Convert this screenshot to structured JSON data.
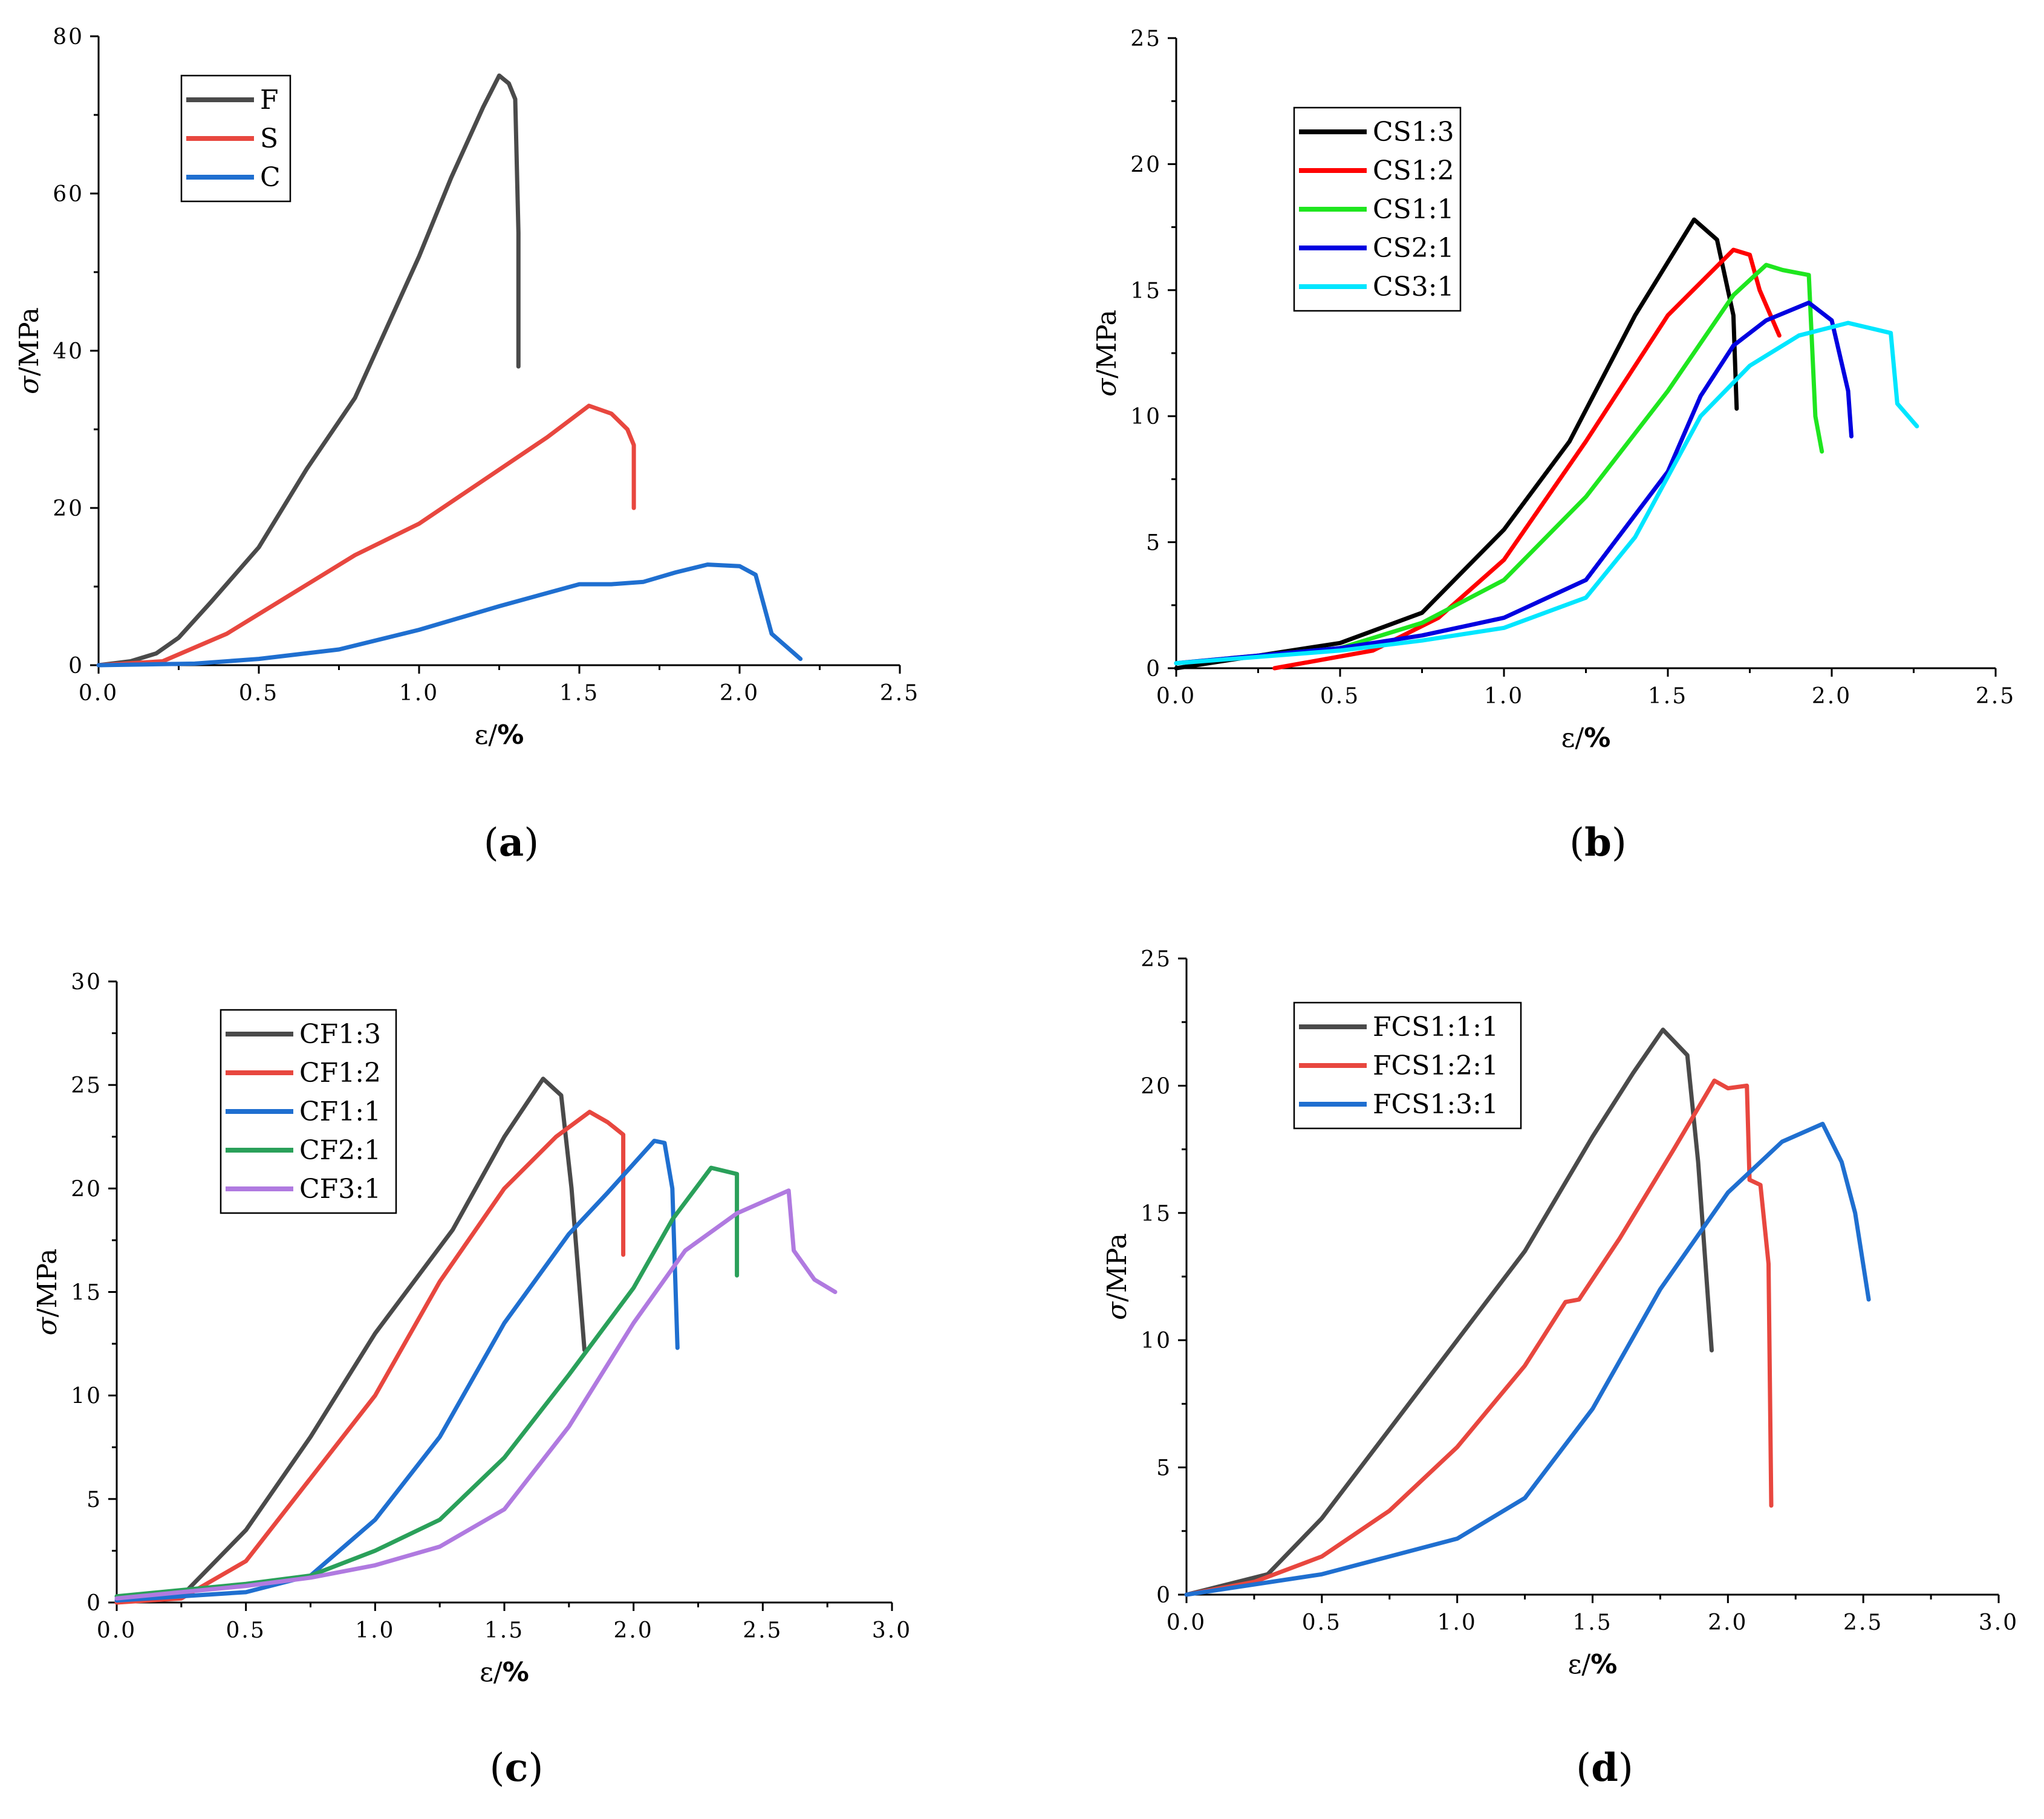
{
  "chart_data": [
    {
      "panel": "a",
      "type": "line",
      "xlabel": "ε/%",
      "ylabel": "σ/MPa",
      "xlim": [
        0,
        2.5
      ],
      "ylim": [
        0,
        80
      ],
      "xticks": [
        "0.0",
        "0.5",
        "1.0",
        "1.5",
        "2.0",
        "2.5"
      ],
      "yticks": [
        "0",
        "20",
        "40",
        "60",
        "80"
      ],
      "legend_position": "top-left",
      "series": [
        {
          "name": "F",
          "color": "#4a4a4a",
          "points": [
            [
              0,
              0
            ],
            [
              0.1,
              0.5
            ],
            [
              0.18,
              1.5
            ],
            [
              0.25,
              3.5
            ],
            [
              0.35,
              8
            ],
            [
              0.5,
              15
            ],
            [
              0.65,
              25
            ],
            [
              0.8,
              34
            ],
            [
              1.0,
              52
            ],
            [
              1.1,
              62
            ],
            [
              1.2,
              71
            ],
            [
              1.25,
              75
            ],
            [
              1.28,
              74
            ],
            [
              1.3,
              72
            ],
            [
              1.31,
              55
            ],
            [
              1.31,
              38
            ]
          ]
        },
        {
          "name": "S",
          "color": "#e8473f",
          "points": [
            [
              0,
              0
            ],
            [
              0.2,
              0.5
            ],
            [
              0.4,
              4
            ],
            [
              0.6,
              9
            ],
            [
              0.8,
              14
            ],
            [
              1.0,
              18
            ],
            [
              1.2,
              23.5
            ],
            [
              1.4,
              29
            ],
            [
              1.53,
              33
            ],
            [
              1.6,
              32
            ],
            [
              1.65,
              30
            ],
            [
              1.67,
              28
            ],
            [
              1.67,
              20
            ]
          ]
        },
        {
          "name": "C",
          "color": "#1f6fd0",
          "points": [
            [
              0,
              0
            ],
            [
              0.3,
              0.2
            ],
            [
              0.5,
              0.8
            ],
            [
              0.75,
              2
            ],
            [
              1.0,
              4.5
            ],
            [
              1.25,
              7.5
            ],
            [
              1.5,
              10.3
            ],
            [
              1.6,
              10.3
            ],
            [
              1.7,
              10.6
            ],
            [
              1.8,
              11.8
            ],
            [
              1.9,
              12.8
            ],
            [
              2.0,
              12.6
            ],
            [
              2.05,
              11.5
            ],
            [
              2.1,
              4
            ],
            [
              2.19,
              0.8
            ]
          ]
        }
      ]
    },
    {
      "panel": "b",
      "type": "line",
      "xlabel": "ε/%",
      "ylabel": "σ/MPa",
      "xlim": [
        0,
        2.5
      ],
      "ylim": [
        0,
        25
      ],
      "xticks": [
        "0.0",
        "0.5",
        "1.0",
        "1.5",
        "2.0",
        "2.5"
      ],
      "yticks": [
        "0",
        "5",
        "10",
        "15",
        "20",
        "25"
      ],
      "legend_position": "top-left",
      "series": [
        {
          "name": "CS1:3",
          "color": "#000000",
          "points": [
            [
              0,
              0
            ],
            [
              0.5,
              1
            ],
            [
              0.75,
              2.2
            ],
            [
              1.0,
              5.5
            ],
            [
              1.2,
              9
            ],
            [
              1.4,
              14
            ],
            [
              1.58,
              17.8
            ],
            [
              1.65,
              17
            ],
            [
              1.7,
              14
            ],
            [
              1.71,
              10.3
            ]
          ]
        },
        {
          "name": "CS1:2",
          "color": "#ff0000",
          "points": [
            [
              0.3,
              0
            ],
            [
              0.6,
              0.7
            ],
            [
              0.8,
              2
            ],
            [
              1.0,
              4.3
            ],
            [
              1.25,
              9
            ],
            [
              1.5,
              14
            ],
            [
              1.7,
              16.6
            ],
            [
              1.75,
              16.4
            ],
            [
              1.78,
              15
            ],
            [
              1.84,
              13.2
            ]
          ]
        },
        {
          "name": "CS1:1",
          "color": "#1fe61f",
          "points": [
            [
              0,
              0.2
            ],
            [
              0.5,
              0.8
            ],
            [
              0.75,
              1.8
            ],
            [
              1.0,
              3.5
            ],
            [
              1.25,
              6.8
            ],
            [
              1.5,
              11
            ],
            [
              1.7,
              14.8
            ],
            [
              1.8,
              16
            ],
            [
              1.85,
              15.8
            ],
            [
              1.93,
              15.6
            ],
            [
              1.95,
              10
            ],
            [
              1.97,
              8.6
            ]
          ]
        },
        {
          "name": "CS2:1",
          "color": "#0000e0",
          "points": [
            [
              0,
              0.2
            ],
            [
              0.5,
              0.8
            ],
            [
              0.75,
              1.3
            ],
            [
              1.0,
              2
            ],
            [
              1.25,
              3.5
            ],
            [
              1.5,
              7.8
            ],
            [
              1.6,
              10.8
            ],
            [
              1.7,
              12.8
            ],
            [
              1.8,
              13.8
            ],
            [
              1.93,
              14.5
            ],
            [
              2.0,
              13.8
            ],
            [
              2.05,
              11
            ],
            [
              2.06,
              9.2
            ]
          ]
        },
        {
          "name": "CS3:1",
          "color": "#00e6ff",
          "points": [
            [
              0,
              0.2
            ],
            [
              0.5,
              0.7
            ],
            [
              0.75,
              1.1
            ],
            [
              1.0,
              1.6
            ],
            [
              1.25,
              2.8
            ],
            [
              1.4,
              5.2
            ],
            [
              1.6,
              10
            ],
            [
              1.75,
              12
            ],
            [
              1.9,
              13.2
            ],
            [
              2.05,
              13.7
            ],
            [
              2.18,
              13.3
            ],
            [
              2.2,
              10.5
            ],
            [
              2.26,
              9.6
            ]
          ]
        }
      ]
    },
    {
      "panel": "c",
      "type": "line",
      "xlabel": "ε/%",
      "ylabel": "σ/MPa",
      "xlim": [
        0,
        3.0
      ],
      "ylim": [
        0,
        30
      ],
      "xticks": [
        "0.0",
        "0.5",
        "1.0",
        "1.5",
        "2.0",
        "2.5",
        "3.0"
      ],
      "yticks": [
        "0",
        "5",
        "10",
        "15",
        "20",
        "25",
        "30"
      ],
      "legend_position": "top-left",
      "series": [
        {
          "name": "CF1:3",
          "color": "#4a4a4a",
          "points": [
            [
              0,
              0
            ],
            [
              0.25,
              0.3
            ],
            [
              0.5,
              3.5
            ],
            [
              0.75,
              8
            ],
            [
              1.0,
              13
            ],
            [
              1.3,
              18
            ],
            [
              1.5,
              22.5
            ],
            [
              1.65,
              25.3
            ],
            [
              1.72,
              24.5
            ],
            [
              1.76,
              20
            ],
            [
              1.81,
              12.2
            ]
          ]
        },
        {
          "name": "CF1:2",
          "color": "#e8473f",
          "points": [
            [
              0,
              0
            ],
            [
              0.25,
              0.2
            ],
            [
              0.5,
              2
            ],
            [
              0.75,
              6
            ],
            [
              1.0,
              10
            ],
            [
              1.25,
              15.5
            ],
            [
              1.5,
              20
            ],
            [
              1.7,
              22.5
            ],
            [
              1.83,
              23.7
            ],
            [
              1.9,
              23.2
            ],
            [
              1.96,
              22.6
            ],
            [
              1.96,
              16.8
            ]
          ]
        },
        {
          "name": "CF1:1",
          "color": "#1f6fd0",
          "points": [
            [
              0,
              0.1
            ],
            [
              0.5,
              0.5
            ],
            [
              0.75,
              1.3
            ],
            [
              1.0,
              4
            ],
            [
              1.25,
              8
            ],
            [
              1.5,
              13.5
            ],
            [
              1.75,
              17.8
            ],
            [
              1.9,
              19.8
            ],
            [
              2.08,
              22.3
            ],
            [
              2.12,
              22.2
            ],
            [
              2.15,
              20
            ],
            [
              2.17,
              12.3
            ]
          ]
        },
        {
          "name": "CF2:1",
          "color": "#2aa05a",
          "points": [
            [
              0,
              0.3
            ],
            [
              0.25,
              0.6
            ],
            [
              0.5,
              0.9
            ],
            [
              0.75,
              1.3
            ],
            [
              1.0,
              2.5
            ],
            [
              1.25,
              4
            ],
            [
              1.5,
              7
            ],
            [
              1.75,
              11
            ],
            [
              2.0,
              15.2
            ],
            [
              2.15,
              18.5
            ],
            [
              2.3,
              21
            ],
            [
              2.4,
              20.7
            ],
            [
              2.4,
              15.8
            ]
          ]
        },
        {
          "name": "CF3:1",
          "color": "#b07ae0",
          "points": [
            [
              0,
              0.2
            ],
            [
              0.5,
              0.8
            ],
            [
              0.75,
              1.2
            ],
            [
              1.0,
              1.8
            ],
            [
              1.25,
              2.7
            ],
            [
              1.5,
              4.5
            ],
            [
              1.75,
              8.5
            ],
            [
              2.0,
              13.5
            ],
            [
              2.2,
              17
            ],
            [
              2.4,
              18.8
            ],
            [
              2.6,
              19.9
            ],
            [
              2.62,
              17
            ],
            [
              2.7,
              15.6
            ],
            [
              2.78,
              15
            ]
          ]
        }
      ]
    },
    {
      "panel": "d",
      "type": "line",
      "xlabel": "ε/%",
      "ylabel": "σ/MPa",
      "xlim": [
        0,
        3.0
      ],
      "ylim": [
        0,
        25
      ],
      "xticks": [
        "0.0",
        "0.5",
        "1.0",
        "1.5",
        "2.0",
        "2.5",
        "3.0"
      ],
      "yticks": [
        "0",
        "5",
        "10",
        "15",
        "20",
        "25"
      ],
      "legend_position": "top-left",
      "series": [
        {
          "name": "FCS1:1:1",
          "color": "#4a4a4a",
          "points": [
            [
              0,
              0
            ],
            [
              0.3,
              0.8
            ],
            [
              0.5,
              3
            ],
            [
              0.75,
              6.5
            ],
            [
              1.0,
              10
            ],
            [
              1.25,
              13.5
            ],
            [
              1.5,
              18
            ],
            [
              1.65,
              20.5
            ],
            [
              1.76,
              22.2
            ],
            [
              1.85,
              21.2
            ],
            [
              1.89,
              17
            ],
            [
              1.94,
              9.6
            ]
          ]
        },
        {
          "name": "FCS1:2:1",
          "color": "#e8473f",
          "points": [
            [
              0,
              0
            ],
            [
              0.25,
              0.5
            ],
            [
              0.5,
              1.5
            ],
            [
              0.75,
              3.3
            ],
            [
              1.0,
              5.8
            ],
            [
              1.25,
              9
            ],
            [
              1.4,
              11.5
            ],
            [
              1.45,
              11.6
            ],
            [
              1.6,
              14
            ],
            [
              1.8,
              17.5
            ],
            [
              1.95,
              20.2
            ],
            [
              2.0,
              19.9
            ],
            [
              2.07,
              20
            ],
            [
              2.08,
              16.3
            ],
            [
              2.12,
              16.1
            ],
            [
              2.15,
              13
            ],
            [
              2.16,
              3.5
            ]
          ]
        },
        {
          "name": "FCS1:3:1",
          "color": "#1f6fd0",
          "points": [
            [
              0,
              0
            ],
            [
              0.5,
              0.8
            ],
            [
              1.0,
              2.2
            ],
            [
              1.25,
              3.8
            ],
            [
              1.5,
              7.3
            ],
            [
              1.75,
              12
            ],
            [
              2.0,
              15.8
            ],
            [
              2.2,
              17.8
            ],
            [
              2.35,
              18.5
            ],
            [
              2.42,
              17
            ],
            [
              2.47,
              15
            ],
            [
              2.52,
              11.6
            ]
          ]
        }
      ]
    }
  ]
}
